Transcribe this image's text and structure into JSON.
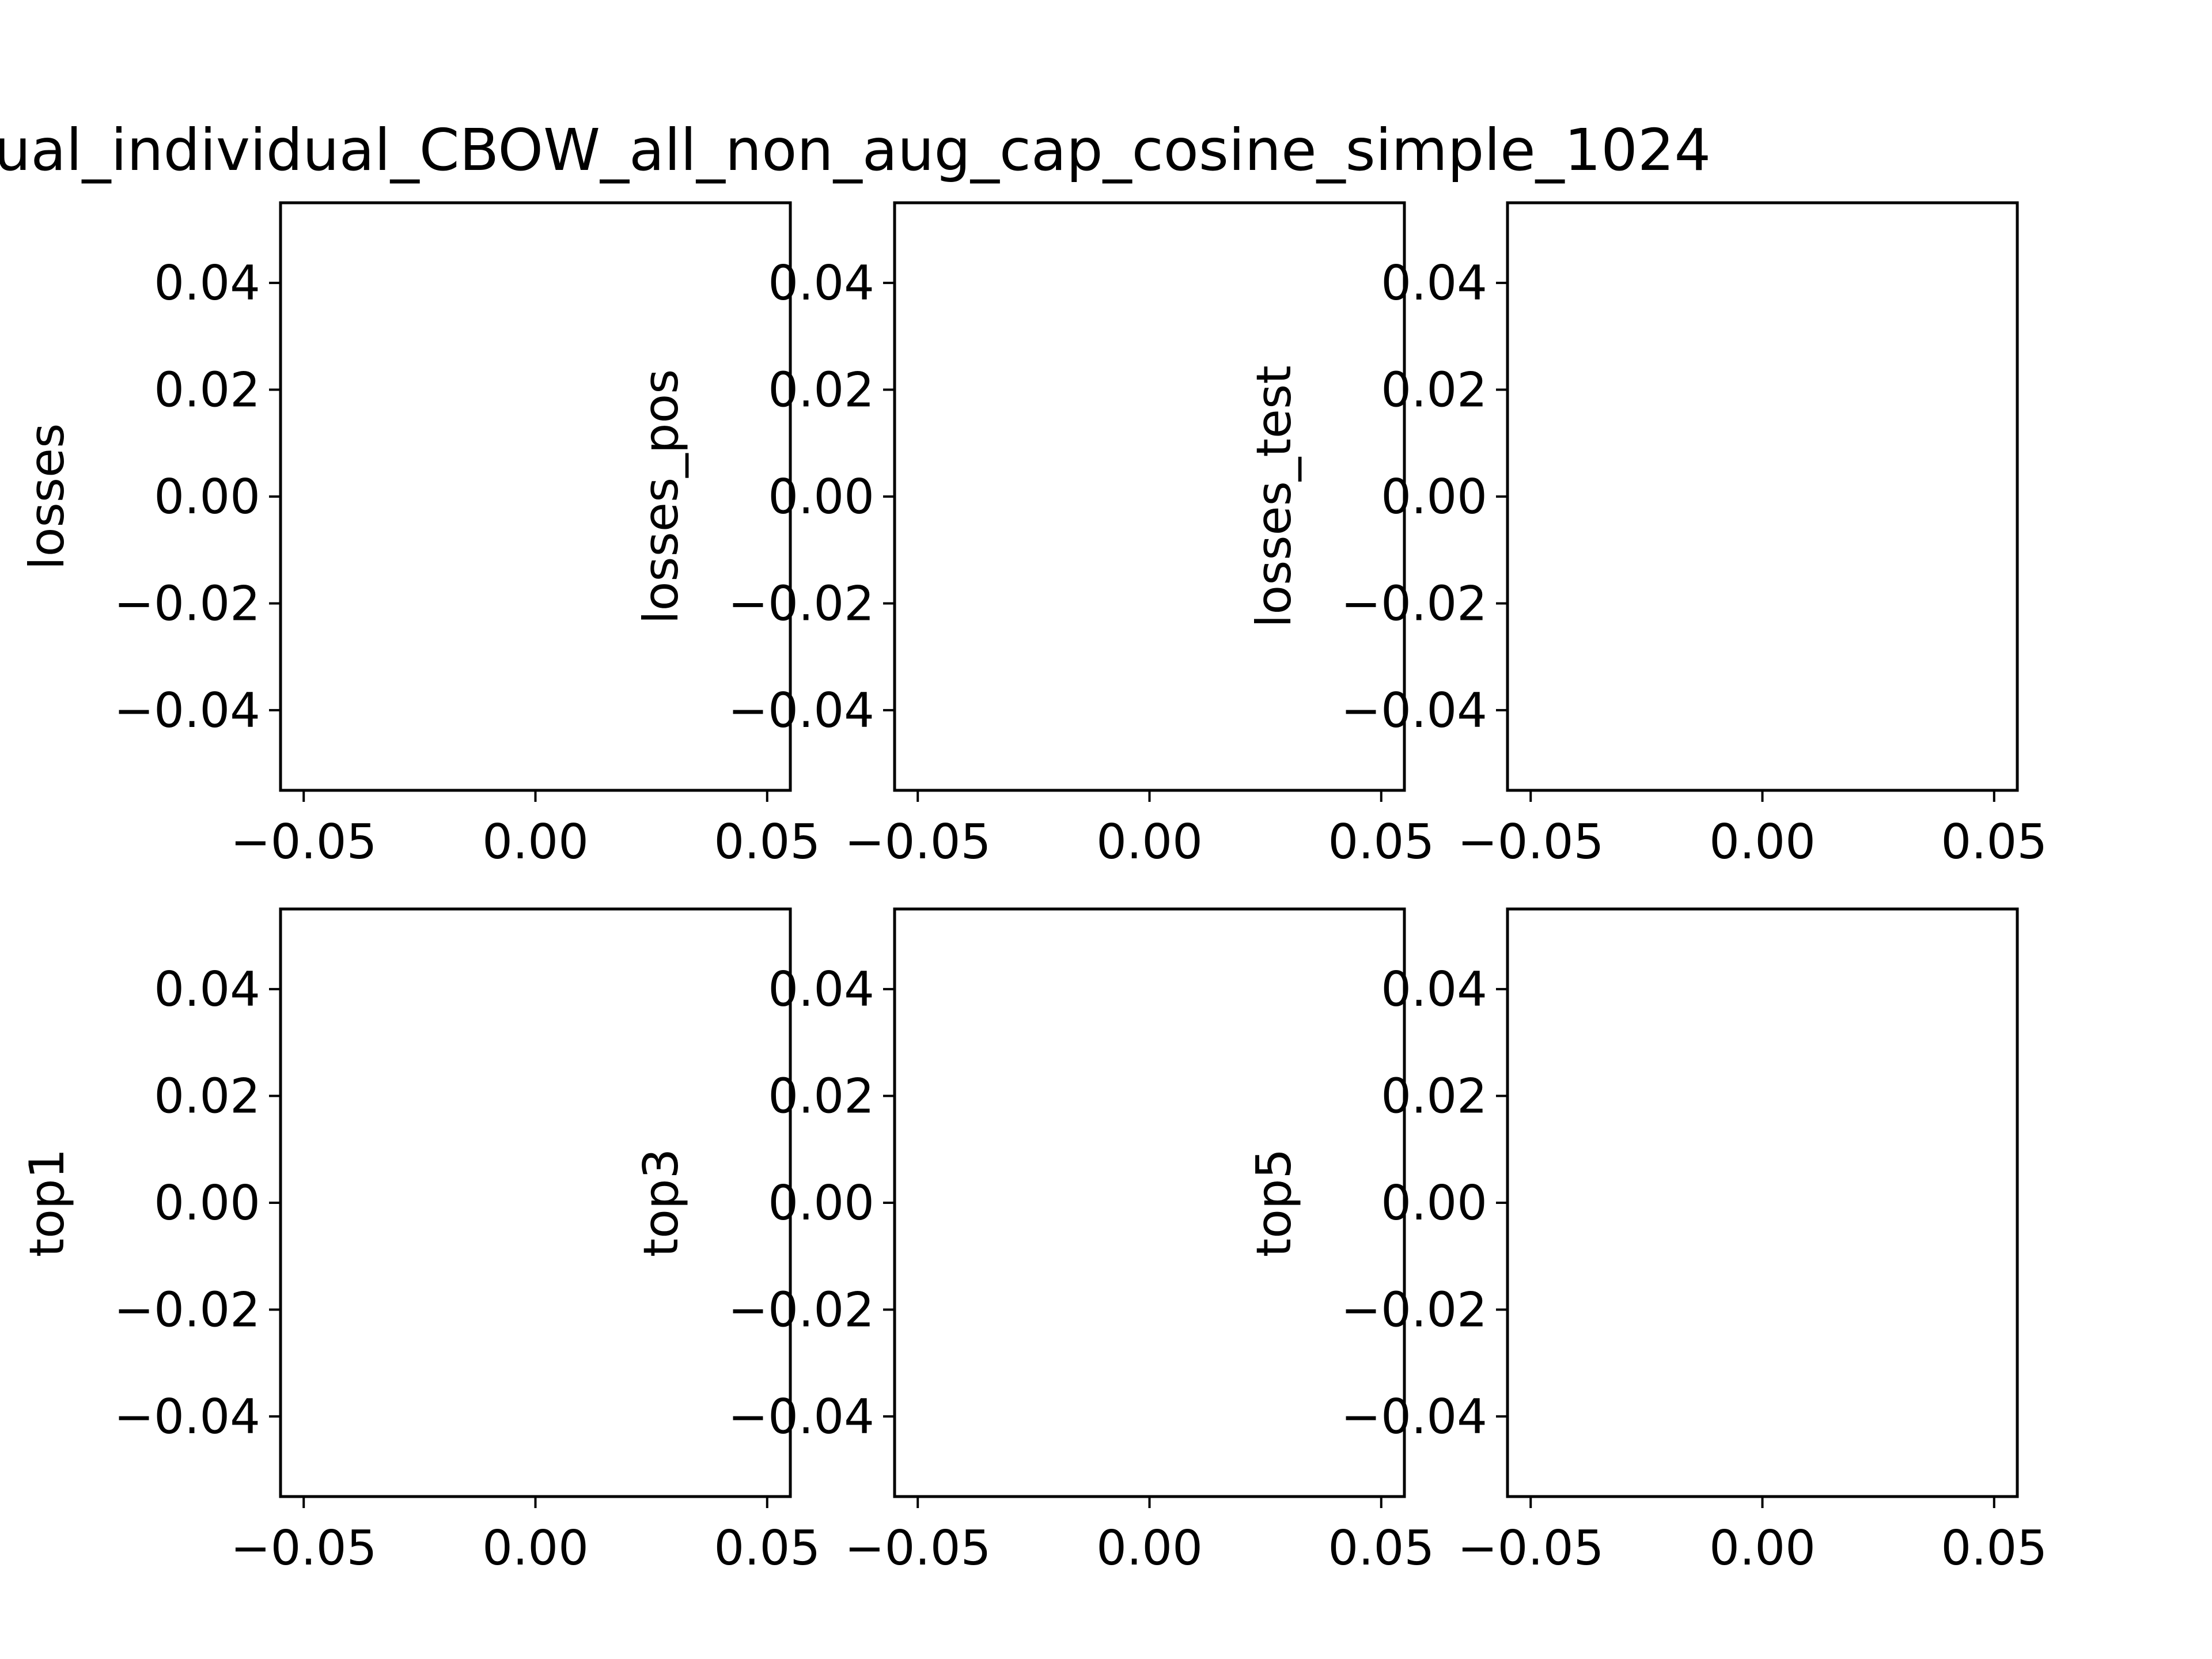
{
  "figure": {
    "title": "ual_individual_CBOW_all_non_aug_cap_cosine_simple_1024"
  },
  "chart_data": [
    {
      "type": "line",
      "ylabel": "losses",
      "xlabel": "",
      "series": [],
      "xlim": [
        -0.055,
        0.055
      ],
      "ylim": [
        -0.055,
        0.055
      ],
      "xticks": [
        -0.05,
        0.0,
        0.05
      ],
      "xtick_labels": [
        "−0.05",
        "0.00",
        "0.05"
      ],
      "yticks": [
        0.04,
        0.02,
        0.0,
        -0.02,
        -0.04
      ],
      "ytick_labels": [
        "0.04",
        "0.02",
        "0.00",
        "−0.02",
        "−0.04"
      ],
      "grid": false
    },
    {
      "type": "line",
      "ylabel": "losses_pos",
      "xlabel": "",
      "series": [],
      "xlim": [
        -0.055,
        0.055
      ],
      "ylim": [
        -0.055,
        0.055
      ],
      "xticks": [
        -0.05,
        0.0,
        0.05
      ],
      "xtick_labels": [
        "−0.05",
        "0.00",
        "0.05"
      ],
      "yticks": [
        0.04,
        0.02,
        0.0,
        -0.02,
        -0.04
      ],
      "ytick_labels": [
        "0.04",
        "0.02",
        "0.00",
        "−0.02",
        "−0.04"
      ],
      "grid": false
    },
    {
      "type": "line",
      "ylabel": "losses_test",
      "xlabel": "",
      "series": [],
      "xlim": [
        -0.055,
        0.055
      ],
      "ylim": [
        -0.055,
        0.055
      ],
      "xticks": [
        -0.05,
        0.0,
        0.05
      ],
      "xtick_labels": [
        "−0.05",
        "0.00",
        "0.05"
      ],
      "yticks": [
        0.04,
        0.02,
        0.0,
        -0.02,
        -0.04
      ],
      "ytick_labels": [
        "0.04",
        "0.02",
        "0.00",
        "−0.02",
        "−0.04"
      ],
      "grid": false
    },
    {
      "type": "line",
      "ylabel": "top1",
      "xlabel": "",
      "series": [],
      "xlim": [
        -0.055,
        0.055
      ],
      "ylim": [
        -0.055,
        0.055
      ],
      "xticks": [
        -0.05,
        0.0,
        0.05
      ],
      "xtick_labels": [
        "−0.05",
        "0.00",
        "0.05"
      ],
      "yticks": [
        0.04,
        0.02,
        0.0,
        -0.02,
        -0.04
      ],
      "ytick_labels": [
        "0.04",
        "0.02",
        "0.00",
        "−0.02",
        "−0.04"
      ],
      "grid": false
    },
    {
      "type": "line",
      "ylabel": "top3",
      "xlabel": "",
      "series": [],
      "xlim": [
        -0.055,
        0.055
      ],
      "ylim": [
        -0.055,
        0.055
      ],
      "xticks": [
        -0.05,
        0.0,
        0.05
      ],
      "xtick_labels": [
        "−0.05",
        "0.00",
        "0.05"
      ],
      "yticks": [
        0.04,
        0.02,
        0.0,
        -0.02,
        -0.04
      ],
      "ytick_labels": [
        "0.04",
        "0.02",
        "0.00",
        "−0.02",
        "−0.04"
      ],
      "grid": false
    },
    {
      "type": "line",
      "ylabel": "top5",
      "xlabel": "",
      "series": [],
      "xlim": [
        -0.055,
        0.055
      ],
      "ylim": [
        -0.055,
        0.055
      ],
      "xticks": [
        -0.05,
        0.0,
        0.05
      ],
      "xtick_labels": [
        "−0.05",
        "0.00",
        "0.05"
      ],
      "yticks": [
        0.04,
        0.02,
        0.0,
        -0.02,
        -0.04
      ],
      "ytick_labels": [
        "0.04",
        "0.02",
        "0.00",
        "−0.02",
        "−0.04"
      ],
      "grid": false
    }
  ]
}
